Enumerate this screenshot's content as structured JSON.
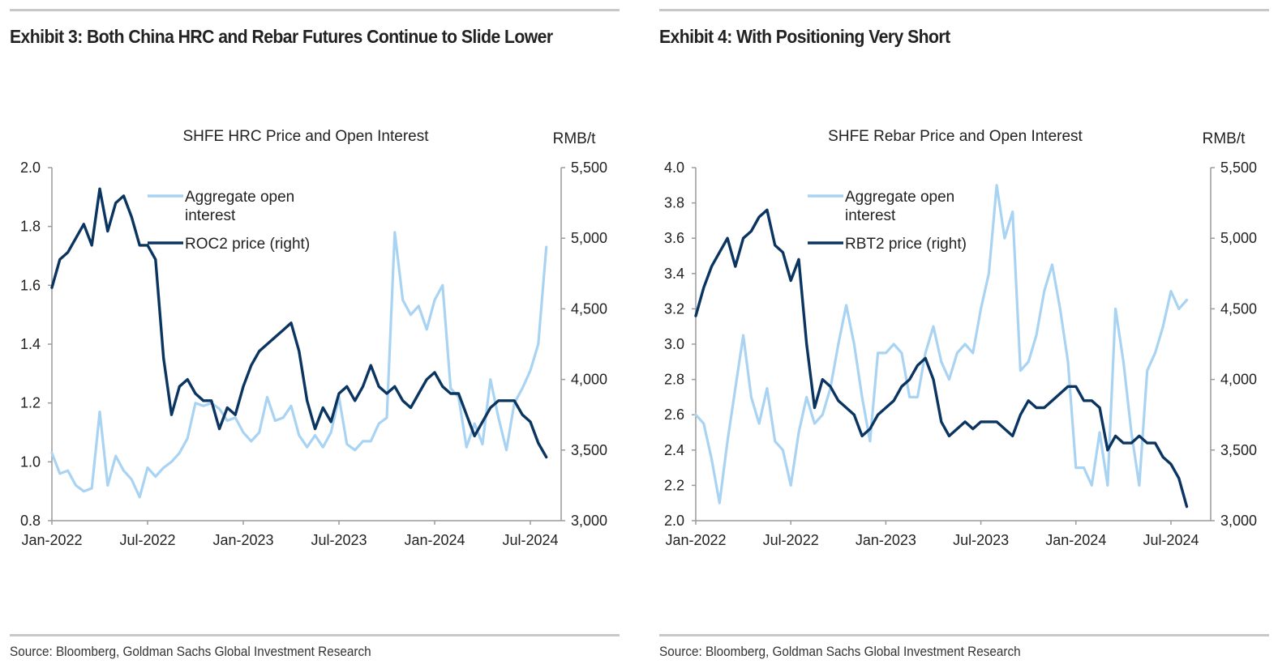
{
  "colors": {
    "open_interest": "#a9d3f2",
    "price": "#0b3561",
    "axis": "#9a9a9a",
    "rule": "#c8c8c8"
  },
  "exhibits": [
    {
      "title": "Exhibit 3: Both China HRC and Rebar Futures Continue to Slide Lower",
      "source": "Source: Bloomberg, Goldman Sachs Global Investment Research"
    },
    {
      "title": "Exhibit 4: With Positioning Very Short",
      "source": "Source: Bloomberg, Goldman Sachs Global Investment Research"
    }
  ],
  "chart_data": [
    {
      "type": "line",
      "title": "SHFE HRC Price and Open Interest",
      "xlabel": "",
      "ylabel": "",
      "y2label": "RMB/t",
      "x_ticks": [
        "Jan-2022",
        "Jul-2022",
        "Jan-2023",
        "Jul-2023",
        "Jan-2024",
        "Jul-2024"
      ],
      "x_range_months": [
        0,
        31.5
      ],
      "ylim": [
        0.8,
        2.0
      ],
      "y_ticks": [
        "0.8",
        "1.0",
        "1.2",
        "1.4",
        "1.6",
        "1.8",
        "2.0"
      ],
      "y2lim": [
        3000,
        5500
      ],
      "y2_ticks": [
        "3,000",
        "3,500",
        "4,000",
        "4,500",
        "5,000",
        "5,500"
      ],
      "legend": {
        "placement": "top-center",
        "entries": [
          "Aggregate open interest",
          "ROC2 price (right)"
        ]
      },
      "grid": false,
      "series": [
        {
          "name": "Aggregate open interest",
          "axis": "left",
          "x_months": [
            0,
            0.5,
            1,
            1.5,
            2,
            2.5,
            3,
            3.5,
            4,
            4.5,
            5,
            5.5,
            6,
            6.5,
            7,
            7.5,
            8,
            8.5,
            9,
            9.5,
            10,
            10.5,
            11,
            11.5,
            12,
            12.5,
            13,
            13.5,
            14,
            14.5,
            15,
            15.5,
            16,
            16.5,
            17,
            17.5,
            18,
            18.5,
            19,
            19.5,
            20,
            20.5,
            21,
            21.5,
            22,
            22.5,
            23,
            23.5,
            24,
            24.5,
            25,
            25.5,
            26,
            26.5,
            27,
            27.5,
            28,
            28.5,
            29,
            29.5,
            30,
            30.5,
            31
          ],
          "values": [
            1.03,
            0.96,
            0.97,
            0.92,
            0.9,
            0.91,
            1.17,
            0.92,
            1.02,
            0.97,
            0.94,
            0.88,
            0.98,
            0.95,
            0.98,
            1.0,
            1.03,
            1.08,
            1.2,
            1.19,
            1.2,
            1.18,
            1.14,
            1.15,
            1.1,
            1.07,
            1.1,
            1.22,
            1.14,
            1.15,
            1.19,
            1.09,
            1.05,
            1.09,
            1.05,
            1.1,
            1.22,
            1.06,
            1.04,
            1.07,
            1.07,
            1.13,
            1.15,
            1.78,
            1.55,
            1.5,
            1.53,
            1.45,
            1.55,
            1.6,
            1.25,
            1.22,
            1.05,
            1.13,
            1.06,
            1.28,
            1.15,
            1.04,
            1.2,
            1.25,
            1.31,
            1.4,
            1.73
          ]
        },
        {
          "name": "ROC2 price (right)",
          "axis": "right",
          "x_months": [
            0,
            0.5,
            1,
            1.5,
            2,
            2.5,
            3,
            3.5,
            4,
            4.5,
            5,
            5.5,
            6,
            6.5,
            7,
            7.5,
            8,
            8.5,
            9,
            9.5,
            10,
            10.5,
            11,
            11.5,
            12,
            12.5,
            13,
            13.5,
            14,
            14.5,
            15,
            15.5,
            16,
            16.5,
            17,
            17.5,
            18,
            18.5,
            19,
            19.5,
            20,
            20.5,
            21,
            21.5,
            22,
            22.5,
            23,
            23.5,
            24,
            24.5,
            25,
            25.5,
            26,
            26.5,
            27,
            27.5,
            28,
            28.5,
            29,
            29.5,
            30,
            30.5,
            31
          ],
          "values": [
            4650,
            4850,
            4900,
            5000,
            5100,
            4950,
            5350,
            5050,
            5250,
            5300,
            5150,
            4950,
            4950,
            4850,
            4150,
            3750,
            3950,
            4000,
            3900,
            3850,
            3850,
            3650,
            3800,
            3750,
            3950,
            4100,
            4200,
            4250,
            4300,
            4350,
            4400,
            4200,
            3850,
            3650,
            3800,
            3700,
            3900,
            3950,
            3850,
            3950,
            4100,
            3950,
            3900,
            3950,
            3850,
            3800,
            3900,
            4000,
            4050,
            3950,
            3900,
            3900,
            3750,
            3600,
            3700,
            3800,
            3850,
            3850,
            3850,
            3750,
            3700,
            3550,
            3450
          ]
        }
      ]
    },
    {
      "type": "line",
      "title": "SHFE Rebar Price and Open Interest",
      "xlabel": "",
      "ylabel": "",
      "y2label": "RMB/t",
      "x_ticks": [
        "Jan-2022",
        "Jul-2022",
        "Jan-2023",
        "Jul-2023",
        "Jan-2024",
        "Jul-2024"
      ],
      "x_range_months": [
        0,
        31.5
      ],
      "ylim": [
        2.0,
        4.0
      ],
      "y_ticks": [
        "2.0",
        "2.2",
        "2.4",
        "2.6",
        "2.8",
        "3.0",
        "3.2",
        "3.4",
        "3.6",
        "3.8",
        "4.0"
      ],
      "y2lim": [
        3000,
        5500
      ],
      "y2_ticks": [
        "3,000",
        "3,500",
        "4,000",
        "4,500",
        "5,000",
        "5,500"
      ],
      "legend": {
        "placement": "top-center",
        "entries": [
          "Aggregate open interest",
          "RBT2 price (right)"
        ]
      },
      "grid": false,
      "series": [
        {
          "name": "Aggregate open interest",
          "axis": "left",
          "x_months": [
            0,
            0.5,
            1,
            1.5,
            2,
            2.5,
            3,
            3.5,
            4,
            4.5,
            5,
            5.5,
            6,
            6.5,
            7,
            7.5,
            8,
            8.5,
            9,
            9.5,
            10,
            10.5,
            11,
            11.5,
            12,
            12.5,
            13,
            13.5,
            14,
            14.5,
            15,
            15.5,
            16,
            16.5,
            17,
            17.5,
            18,
            18.5,
            19,
            19.5,
            20,
            20.5,
            21,
            21.5,
            22,
            22.5,
            23,
            23.5,
            24,
            24.5,
            25,
            25.5,
            26,
            26.5,
            27,
            27.5,
            28,
            28.5,
            29,
            29.5,
            30,
            30.5,
            31
          ],
          "values": [
            2.6,
            2.55,
            2.35,
            2.1,
            2.45,
            2.75,
            3.05,
            2.7,
            2.55,
            2.75,
            2.45,
            2.4,
            2.2,
            2.5,
            2.7,
            2.55,
            2.6,
            2.75,
            3.0,
            3.22,
            3.0,
            2.7,
            2.45,
            2.95,
            2.95,
            3.0,
            2.95,
            2.7,
            2.7,
            2.95,
            3.1,
            2.9,
            2.8,
            2.95,
            3.0,
            2.95,
            3.2,
            3.4,
            3.9,
            3.6,
            3.75,
            2.85,
            2.9,
            3.05,
            3.3,
            3.45,
            3.2,
            2.9,
            2.3,
            2.3,
            2.2,
            2.5,
            2.2,
            3.2,
            2.9,
            2.5,
            2.2,
            2.85,
            2.95,
            3.1,
            3.3,
            3.2,
            3.25
          ]
        },
        {
          "name": "RBT2 price (right)",
          "axis": "right",
          "x_months": [
            0,
            0.5,
            1,
            1.5,
            2,
            2.5,
            3,
            3.5,
            4,
            4.5,
            5,
            5.5,
            6,
            6.5,
            7,
            7.5,
            8,
            8.5,
            9,
            9.5,
            10,
            10.5,
            11,
            11.5,
            12,
            12.5,
            13,
            13.5,
            14,
            14.5,
            15,
            15.5,
            16,
            16.5,
            17,
            17.5,
            18,
            18.5,
            19,
            19.5,
            20,
            20.5,
            21,
            21.5,
            22,
            22.5,
            23,
            23.5,
            24,
            24.5,
            25,
            25.5,
            26,
            26.5,
            27,
            27.5,
            28,
            28.5,
            29,
            29.5,
            30,
            30.5,
            31
          ],
          "values": [
            4450,
            4650,
            4800,
            4900,
            5000,
            4800,
            5000,
            5050,
            5150,
            5200,
            4950,
            4900,
            4700,
            4850,
            4250,
            3800,
            4000,
            3950,
            3850,
            3800,
            3750,
            3600,
            3650,
            3750,
            3800,
            3850,
            3950,
            4000,
            4100,
            4150,
            4000,
            3700,
            3600,
            3650,
            3700,
            3650,
            3700,
            3700,
            3700,
            3650,
            3600,
            3750,
            3850,
            3800,
            3800,
            3850,
            3900,
            3950,
            3950,
            3850,
            3850,
            3800,
            3500,
            3600,
            3550,
            3550,
            3600,
            3550,
            3550,
            3450,
            3400,
            3300,
            3100
          ]
        }
      ]
    }
  ]
}
